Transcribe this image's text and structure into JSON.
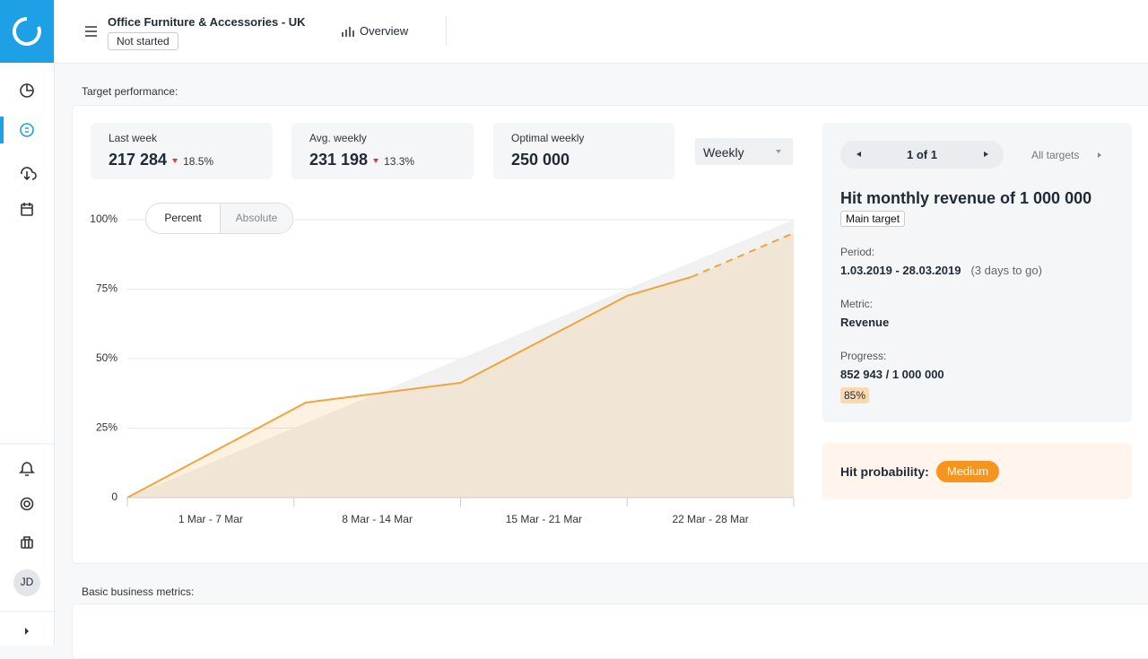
{
  "header": {
    "title": "Office Furniture & Accessories - UK",
    "status": "Not started",
    "tab": "Overview"
  },
  "sidebar": {
    "avatar": "JD"
  },
  "sections": {
    "target_performance": "Target performance:",
    "basic_metrics": "Basic business metrics:"
  },
  "kpis": [
    {
      "label": "Last week",
      "value": "217 284",
      "delta": "18.5%"
    },
    {
      "label": "Avg. weekly",
      "value": "231 198",
      "delta": "13.3%"
    },
    {
      "label": "Optimal weekly",
      "value": "250 000"
    }
  ],
  "period_select": "Weekly",
  "chart_toggle": [
    "Percent",
    "Absolute"
  ],
  "target": {
    "pager": "1 of 1",
    "all_targets": "All targets",
    "title": "Hit monthly revenue of 1 000 000",
    "badge": "Main target",
    "period_label": "Period:",
    "period": "1.03.2019 - 28.03.2019",
    "period_note": "(3 days to go)",
    "metric_label": "Metric:",
    "metric": "Revenue",
    "progress_label": "Progress:",
    "progress": "852 943 / 1 000 000",
    "progress_pct": "85%",
    "probability_label": "Hit probability:",
    "probability": "Medium"
  },
  "chart_data": {
    "type": "area",
    "categories": [
      "1 Mar - 7 Mar",
      "8 Mar - 14 Mar",
      "15 Mar - 21 Mar",
      "22 Mar - 28 Mar"
    ],
    "xlim": [
      0,
      28
    ],
    "xticks": [
      0,
      7,
      14,
      21,
      28
    ],
    "ylim": [
      0,
      100
    ],
    "yticks": [
      0,
      {
        "value": 25,
        "label": "25%"
      },
      {
        "value": 50,
        "label": "50%"
      },
      {
        "value": 75,
        "label": "75%"
      },
      {
        "value": 100,
        "label": "100%"
      }
    ],
    "grid": true,
    "series": [
      {
        "color": "#f1f1f1",
        "x": [
          0,
          28
        ],
        "values": [
          0,
          100
        ],
        "line": false
      },
      {
        "color": "#f0a53c",
        "x": [
          0,
          7.5,
          14,
          21,
          23.7
        ],
        "values": [
          0,
          34.2,
          41.3,
          72.6,
          79.4
        ],
        "line": true
      },
      {
        "color": "#f0a53c",
        "x": [
          23.7,
          28
        ],
        "values": [
          79.4,
          95.2
        ],
        "line": true,
        "dashed": true
      }
    ]
  }
}
